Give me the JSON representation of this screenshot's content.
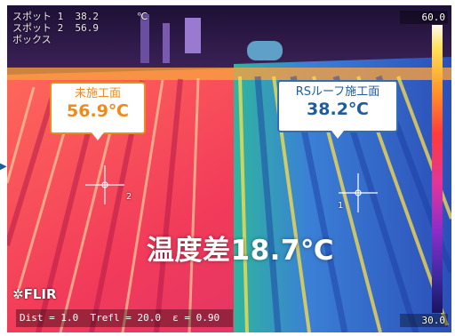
{
  "overlay": {
    "spot_readout": "スポット 1  38.2\nスポット 2  56.9\nボックス",
    "unit": "℃",
    "scale_max": "60.0",
    "scale_min": "30.0",
    "brand": "FLIR",
    "params": "Dist = 1.0  Trefl = 20.0  ε = 0.90",
    "spot1_marker": "1",
    "spot2_marker": "2"
  },
  "callouts": {
    "left": {
      "label": "未施工面",
      "value": "56.9℃"
    },
    "right": {
      "label": "RSルーフ施工面",
      "value": "38.2℃"
    }
  },
  "difference": "温度差18.7℃",
  "colors": {
    "hot": "#ff3b3b",
    "cool": "#2f5fc8",
    "accent_orange": "#f08a1c",
    "accent_blue": "#2f6fb3"
  }
}
